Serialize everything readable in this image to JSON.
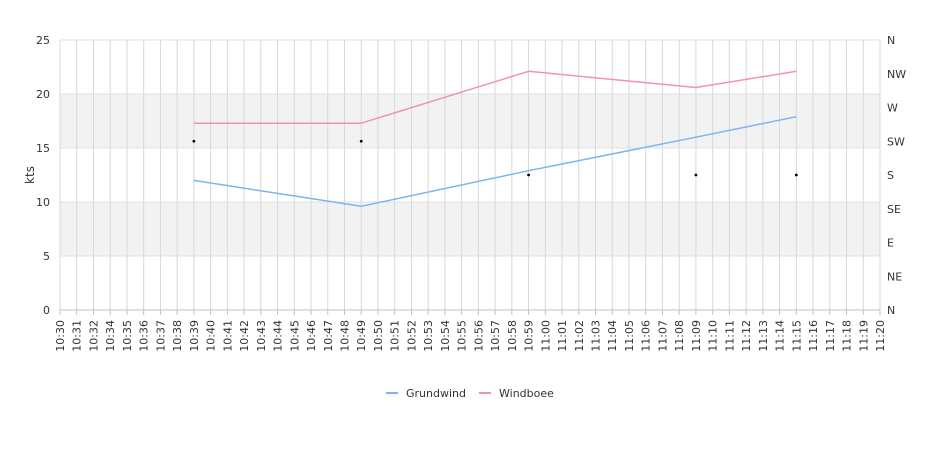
{
  "chart_data": {
    "type": "line",
    "title": "",
    "xlabel": "",
    "ylabel": "kts",
    "ylim": [
      0,
      25
    ],
    "y_ticks": [
      0,
      5,
      10,
      15,
      20,
      25
    ],
    "y_bands": [
      [
        5,
        10
      ],
      [
        15,
        20
      ]
    ],
    "grid": true,
    "legend_position": "bottom-center",
    "x_categories": [
      "10:30",
      "10:31",
      "10:32",
      "10:34",
      "10:35",
      "10:36",
      "10:37",
      "10:38",
      "10:39",
      "10:40",
      "10:41",
      "10:42",
      "10:43",
      "10:44",
      "10:45",
      "10:46",
      "10:47",
      "10:48",
      "10:49",
      "10:50",
      "10:51",
      "10:52",
      "10:53",
      "10:54",
      "10:55",
      "10:56",
      "10:57",
      "10:58",
      "10:59",
      "11:00",
      "11:01",
      "11:02",
      "11:03",
      "11:04",
      "11:05",
      "11:06",
      "11:07",
      "11:08",
      "11:09",
      "11:10",
      "11:11",
      "11:12",
      "11:13",
      "11:14",
      "11:15",
      "11:16",
      "11:17",
      "11:18",
      "11:19",
      "11:20"
    ],
    "y2_labels": [
      "N",
      "NE",
      "E",
      "SE",
      "S",
      "SW",
      "W",
      "NW",
      "N"
    ],
    "series": [
      {
        "name": "Grundwind",
        "color": "#7cb5ec",
        "points": [
          {
            "x": "10:39",
            "y": 12.0
          },
          {
            "x": "10:49",
            "y": 9.6
          },
          {
            "x": "10:59",
            "y": 12.9
          },
          {
            "x": "11:09",
            "y": 16.0
          },
          {
            "x": "11:15",
            "y": 17.9
          }
        ]
      },
      {
        "name": "Windboee",
        "color": "#f191b9",
        "points": [
          {
            "x": "10:39",
            "y": 17.3
          },
          {
            "x": "10:49",
            "y": 17.3
          },
          {
            "x": "10:59",
            "y": 22.1
          },
          {
            "x": "11:09",
            "y": 20.6
          },
          {
            "x": "11:15",
            "y": 22.1
          }
        ]
      }
    ],
    "direction_markers": {
      "color": "#000000",
      "points": [
        {
          "x": "10:39",
          "direction": "SW"
        },
        {
          "x": "10:49",
          "direction": "SW"
        },
        {
          "x": "10:59",
          "direction": "S"
        },
        {
          "x": "11:09",
          "direction": "S"
        },
        {
          "x": "11:15",
          "direction": "S"
        }
      ]
    }
  }
}
